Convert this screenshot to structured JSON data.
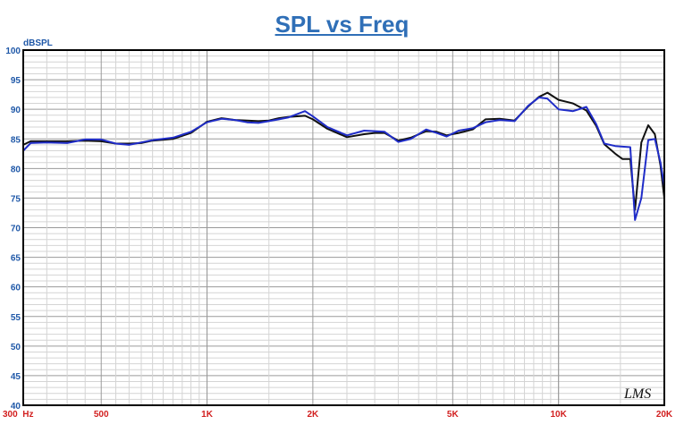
{
  "chart_data": {
    "type": "line",
    "title": "SPL vs Freq",
    "ylabel": "dBSPL",
    "xscale": "log",
    "xlim": [
      300,
      20000
    ],
    "ylim": [
      40,
      100
    ],
    "grid": true,
    "y_ticks": [
      {
        "value": 40,
        "label": "40"
      },
      {
        "value": 45,
        "label": "45"
      },
      {
        "value": 50,
        "label": "50"
      },
      {
        "value": 55,
        "label": "55"
      },
      {
        "value": 60,
        "label": "60"
      },
      {
        "value": 65,
        "label": "65"
      },
      {
        "value": 70,
        "label": "70"
      },
      {
        "value": 75,
        "label": "75"
      },
      {
        "value": 80,
        "label": "80"
      },
      {
        "value": 85,
        "label": "85"
      },
      {
        "value": 90,
        "label": "90"
      },
      {
        "value": 95,
        "label": "95"
      },
      {
        "value": 100,
        "label": "100"
      }
    ],
    "x_ticks": [
      {
        "value": 300,
        "label": "300  Hz"
      },
      {
        "value": 500,
        "label": "500"
      },
      {
        "value": 1000,
        "label": "1K"
      },
      {
        "value": 2000,
        "label": "2K"
      },
      {
        "value": 5000,
        "label": "5K"
      },
      {
        "value": 10000,
        "label": "10K"
      },
      {
        "value": 20000,
        "label": "20K"
      }
    ],
    "series": [
      {
        "color": "#111111",
        "points": [
          [
            300,
            84.0
          ],
          [
            315,
            84.6
          ],
          [
            350,
            84.6
          ],
          [
            400,
            84.6
          ],
          [
            450,
            84.7
          ],
          [
            500,
            84.6
          ],
          [
            550,
            84.2
          ],
          [
            600,
            84.2
          ],
          [
            650,
            84.3
          ],
          [
            700,
            84.7
          ],
          [
            800,
            85.0
          ],
          [
            900,
            86.0
          ],
          [
            1000,
            87.9
          ],
          [
            1100,
            88.5
          ],
          [
            1200,
            88.2
          ],
          [
            1300,
            88.1
          ],
          [
            1400,
            88.0
          ],
          [
            1500,
            88.1
          ],
          [
            1600,
            88.5
          ],
          [
            1700,
            88.7
          ],
          [
            1900,
            88.9
          ],
          [
            2000,
            88.3
          ],
          [
            2200,
            86.7
          ],
          [
            2500,
            85.3
          ],
          [
            2800,
            85.8
          ],
          [
            3000,
            86.0
          ],
          [
            3200,
            86.0
          ],
          [
            3500,
            84.7
          ],
          [
            3800,
            85.2
          ],
          [
            4200,
            86.3
          ],
          [
            4500,
            86.2
          ],
          [
            4800,
            85.6
          ],
          [
            5200,
            86.0
          ],
          [
            5700,
            86.6
          ],
          [
            6200,
            88.3
          ],
          [
            6800,
            88.4
          ],
          [
            7500,
            88.1
          ],
          [
            8200,
            90.5
          ],
          [
            8800,
            92.1
          ],
          [
            9300,
            92.8
          ],
          [
            10000,
            91.6
          ],
          [
            11000,
            91.0
          ],
          [
            12000,
            89.8
          ],
          [
            12800,
            87.2
          ],
          [
            13500,
            84.1
          ],
          [
            14500,
            82.5
          ],
          [
            15200,
            81.6
          ],
          [
            16000,
            81.6
          ],
          [
            16500,
            73.0
          ],
          [
            17200,
            84.4
          ],
          [
            18000,
            87.3
          ],
          [
            18800,
            85.8
          ],
          [
            19500,
            80.5
          ],
          [
            20000,
            75.0
          ]
        ]
      },
      {
        "color": "#1f2cc8",
        "points": [
          [
            300,
            83.0
          ],
          [
            315,
            84.3
          ],
          [
            350,
            84.4
          ],
          [
            400,
            84.3
          ],
          [
            450,
            84.9
          ],
          [
            500,
            84.9
          ],
          [
            550,
            84.2
          ],
          [
            600,
            84.0
          ],
          [
            650,
            84.4
          ],
          [
            700,
            84.8
          ],
          [
            800,
            85.2
          ],
          [
            900,
            86.2
          ],
          [
            1000,
            87.8
          ],
          [
            1100,
            88.4
          ],
          [
            1200,
            88.2
          ],
          [
            1300,
            87.8
          ],
          [
            1400,
            87.7
          ],
          [
            1500,
            88.0
          ],
          [
            1600,
            88.3
          ],
          [
            1700,
            88.6
          ],
          [
            1900,
            89.7
          ],
          [
            2000,
            88.8
          ],
          [
            2200,
            87.0
          ],
          [
            2500,
            85.6
          ],
          [
            2800,
            86.4
          ],
          [
            3000,
            86.3
          ],
          [
            3200,
            86.2
          ],
          [
            3500,
            84.5
          ],
          [
            3800,
            85.0
          ],
          [
            4200,
            86.6
          ],
          [
            4500,
            86.0
          ],
          [
            4800,
            85.4
          ],
          [
            5200,
            86.4
          ],
          [
            5700,
            86.8
          ],
          [
            6200,
            87.8
          ],
          [
            6800,
            88.2
          ],
          [
            7500,
            88.0
          ],
          [
            8200,
            90.6
          ],
          [
            8800,
            92.0
          ],
          [
            9300,
            91.8
          ],
          [
            10000,
            90.0
          ],
          [
            11000,
            89.7
          ],
          [
            12000,
            90.4
          ],
          [
            12800,
            87.5
          ],
          [
            13500,
            84.2
          ],
          [
            14500,
            83.8
          ],
          [
            15200,
            83.7
          ],
          [
            16000,
            83.6
          ],
          [
            16500,
            71.3
          ],
          [
            17200,
            75.0
          ],
          [
            18000,
            84.8
          ],
          [
            18800,
            85.0
          ],
          [
            19500,
            81.0
          ],
          [
            20000,
            77.0
          ]
        ]
      }
    ]
  },
  "watermark": "LMS"
}
